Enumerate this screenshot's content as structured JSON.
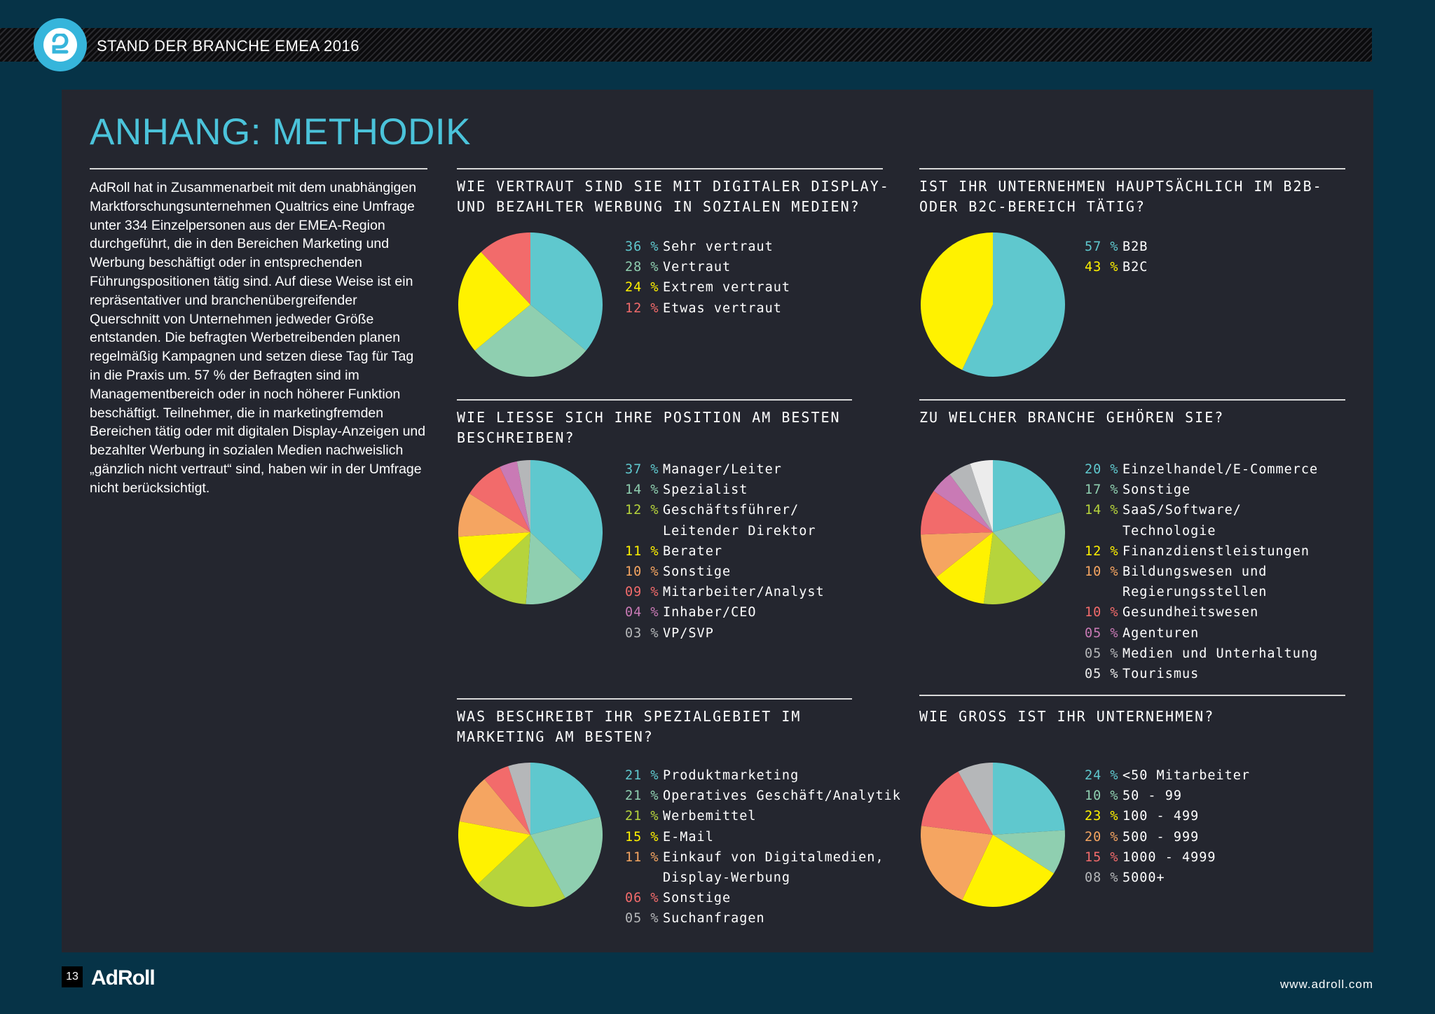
{
  "header": {
    "title": "STAND DER BRANCHE EMEA 2016"
  },
  "heading": "ANHANG: METHODIK",
  "intro": "AdRoll hat in Zusammenarbeit mit dem unabhängigen Marktforschungsunternehmen Qualtrics eine Umfrage unter 334 Einzelpersonen aus der EMEA-Region durchgeführt, die in den Bereichen Marketing und Werbung beschäftigt oder in entsprechenden Führungspositionen tätig sind. Auf diese Weise ist ein repräsentativer und branchenübergreifender Querschnitt von Unternehmen jedweder Größe entstanden. Die befragten Werbetreibenden planen regelmäßig Kampagnen und setzen diese Tag für Tag in die Praxis um. 57 % der Befragten sind im Managementbereich oder in noch höherer Funktion beschäftigt. Teilnehmer, die in marketingfremden Bereichen tätig oder mit digitalen Display-Anzeigen und bezahlter Werbung in sozialen Medien nachweislich „gänzlich nicht vertraut“ sind, haben wir in der Umfrage nicht berücksichtigt.",
  "colors": {
    "cyan": "#5fc8ce",
    "mint": "#8fcfb0",
    "yellow": "#fff200",
    "coral": "#f26b6b",
    "lime": "#b6d43c",
    "orange": "#f5a561",
    "pink": "#c97ab5",
    "gray": "#b5b7b9",
    "white": "#ececec"
  },
  "chart_data": [
    {
      "type": "pie",
      "title": "WIE VERTRAUT SIND SIE MIT DIGITALER DISPLAY-\nUND BEZAHLTER WERBUNG IN SOZIALEN MEDIEN?",
      "slices": [
        {
          "display": "36",
          "value": 36,
          "label": "Sehr vertraut",
          "color": "#5fc8ce"
        },
        {
          "display": "28",
          "value": 28,
          "label": "Vertraut",
          "color": "#8fcfb0"
        },
        {
          "display": "24",
          "value": 24,
          "label": "Extrem vertraut",
          "color": "#fff200"
        },
        {
          "display": "12",
          "value": 12,
          "label": "Etwas vertraut",
          "color": "#f26b6b"
        }
      ]
    },
    {
      "type": "pie",
      "title": "IST IHR UNTERNEHMEN HAUPTSÄCHLICH IM B2B-\nODER B2C-BEREICH TÄTIG?",
      "slices": [
        {
          "display": "57",
          "value": 57,
          "label": "B2B",
          "color": "#5fc8ce"
        },
        {
          "display": "43",
          "value": 43,
          "label": "B2C",
          "color": "#fff200"
        }
      ]
    },
    {
      "type": "pie",
      "title": "WIE LIESSE SICH IHRE POSITION AM BESTEN\nBESCHREIBEN?",
      "slices": [
        {
          "display": "37",
          "value": 37,
          "label": "Manager/Leiter",
          "color": "#5fc8ce"
        },
        {
          "display": "14",
          "value": 14,
          "label": "Spezialist",
          "color": "#8fcfb0"
        },
        {
          "display": "12",
          "value": 12,
          "label": "Geschäftsführer/\nLeitender Direktor",
          "color": "#b6d43c"
        },
        {
          "display": "11",
          "value": 11,
          "label": "Berater",
          "color": "#fff200"
        },
        {
          "display": "10",
          "value": 10,
          "label": "Sonstige",
          "color": "#f5a561"
        },
        {
          "display": "09",
          "value": 9,
          "label": "Mitarbeiter/Analyst",
          "color": "#f26b6b"
        },
        {
          "display": "04",
          "value": 4,
          "label": "Inhaber/CEO",
          "color": "#c97ab5"
        },
        {
          "display": "03",
          "value": 3,
          "label": "VP/SVP",
          "color": "#b5b7b9"
        }
      ]
    },
    {
      "type": "pie",
      "title": "ZU WELCHER BRANCHE GEHÖREN SIE?",
      "slices": [
        {
          "display": "20",
          "value": 20,
          "label": "Einzelhandel/E-Commerce",
          "color": "#5fc8ce"
        },
        {
          "display": "17",
          "value": 17,
          "label": "Sonstige",
          "color": "#8fcfb0"
        },
        {
          "display": "14",
          "value": 14,
          "label": "SaaS/Software/\nTechnologie",
          "color": "#b6d43c"
        },
        {
          "display": "12",
          "value": 12,
          "label": "Finanzdienstleistungen",
          "color": "#fff200"
        },
        {
          "display": "10",
          "value": 10,
          "label": "Bildungswesen und\nRegierungsstellen",
          "color": "#f5a561"
        },
        {
          "display": "10",
          "value": 10,
          "label": "Gesundheitswesen",
          "color": "#f26b6b"
        },
        {
          "display": "05",
          "value": 5,
          "label": "Agenturen",
          "color": "#c97ab5"
        },
        {
          "display": "05",
          "value": 5,
          "label": "Medien und Unterhaltung",
          "color": "#b5b7b9"
        },
        {
          "display": "05",
          "value": 5,
          "label": "Tourismus",
          "color": "#ececec"
        }
      ]
    },
    {
      "type": "pie",
      "title": "WAS BESCHREIBT IHR SPEZIALGEBIET IM\nMARKETING AM BESTEN?",
      "slices": [
        {
          "display": "21",
          "value": 21,
          "label": "Produktmarketing",
          "color": "#5fc8ce"
        },
        {
          "display": "21",
          "value": 21,
          "label": "Operatives Geschäft/Analytik",
          "color": "#8fcfb0"
        },
        {
          "display": "21",
          "value": 21,
          "label": "Werbemittel",
          "color": "#b6d43c"
        },
        {
          "display": "15",
          "value": 15,
          "label": "E-Mail",
          "color": "#fff200"
        },
        {
          "display": "11",
          "value": 11,
          "label": "Einkauf von Digitalmedien,\nDisplay-Werbung",
          "color": "#f5a561"
        },
        {
          "display": "06",
          "value": 6,
          "label": "Sonstige",
          "color": "#f26b6b"
        },
        {
          "display": "05",
          "value": 5,
          "label": "Suchanfragen",
          "color": "#b5b7b9"
        }
      ]
    },
    {
      "type": "pie",
      "title": "WIE GROSS IST IHR UNTERNEHMEN?",
      "slices": [
        {
          "display": "24",
          "value": 24,
          "label": "<50 Mitarbeiter",
          "color": "#5fc8ce"
        },
        {
          "display": "10",
          "value": 10,
          "label": "50 - 99",
          "color": "#8fcfb0"
        },
        {
          "display": "23",
          "value": 23,
          "label": "100 - 499",
          "color": "#fff200"
        },
        {
          "display": "20",
          "value": 20,
          "label": "500 - 999",
          "color": "#f5a561"
        },
        {
          "display": "15",
          "value": 15,
          "label": "1000 - 4999",
          "color": "#f26b6b"
        },
        {
          "display": "08",
          "value": 8,
          "label": "5000+",
          "color": "#b5b7b9"
        }
      ]
    }
  ],
  "footer": {
    "page": "13",
    "brand": "AdRoll",
    "url": "www.adroll.com"
  }
}
